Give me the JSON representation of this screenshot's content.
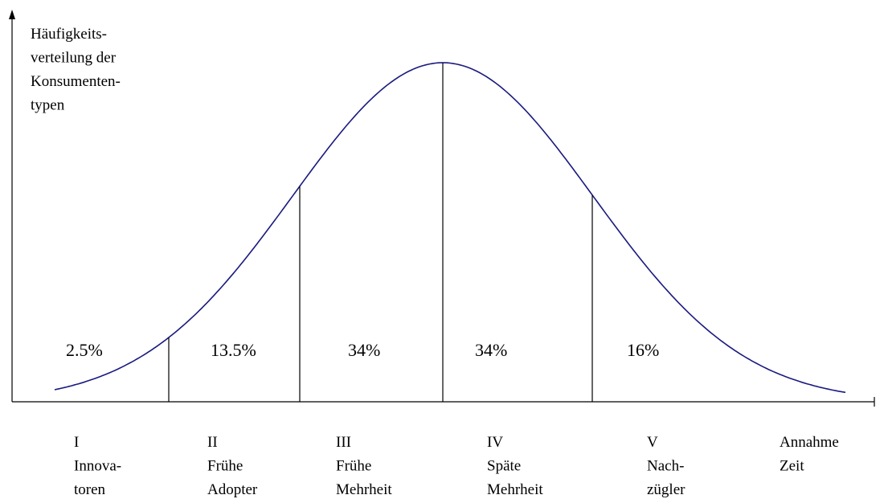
{
  "y_axis_label": [
    "Häufigkeits-",
    "verteilung der",
    "Konsumenten-",
    "typen"
  ],
  "x_axis_label": [
    "Annahme",
    "Zeit"
  ],
  "segments": [
    {
      "share": "2.5%",
      "label": [
        "I",
        "Innova-",
        "toren"
      ]
    },
    {
      "share": "13.5%",
      "label": [
        "II",
        "Frühe",
        "Adopter"
      ]
    },
    {
      "share": "34%",
      "label": [
        "III",
        "Frühe",
        "Mehrheit"
      ]
    },
    {
      "share": "34%",
      "label": [
        "IV",
        "Späte",
        "Mehrheit"
      ]
    },
    {
      "share": "16%",
      "label": [
        "V",
        "Nach-",
        "zügler"
      ]
    }
  ]
}
